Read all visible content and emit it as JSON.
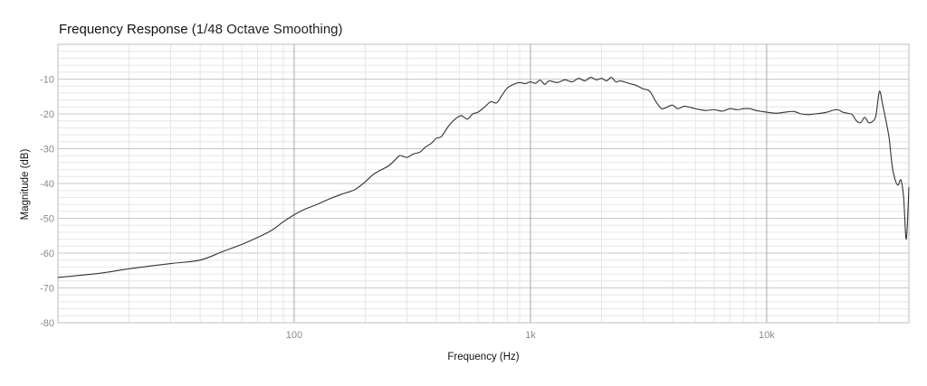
{
  "chart_data": {
    "type": "line",
    "title": "Frequency Response",
    "subtitle": "(1/48 Octave Smoothing)",
    "xlabel": "Frequency (Hz)",
    "ylabel": "Magnitude (dB)",
    "x_scale": "log",
    "xlim": [
      10,
      40000
    ],
    "ylim": [
      -80,
      0
    ],
    "x_ticks": [
      {
        "value": 100,
        "label": "100"
      },
      {
        "value": 1000,
        "label": "1k"
      },
      {
        "value": 10000,
        "label": "10k"
      }
    ],
    "y_ticks": [
      {
        "value": -10,
        "label": "-10"
      },
      {
        "value": -20,
        "label": "-20"
      },
      {
        "value": -30,
        "label": "-30"
      },
      {
        "value": -40,
        "label": "-40"
      },
      {
        "value": -50,
        "label": "-50"
      },
      {
        "value": -60,
        "label": "-60"
      },
      {
        "value": -70,
        "label": "-70"
      },
      {
        "value": -80,
        "label": "-80"
      }
    ],
    "grid": true,
    "colors": {
      "line": "#333333",
      "grid_major": "#c8c8c8",
      "grid_minor": "#e6e6e6",
      "frame": "#bdbdbd"
    },
    "series": [
      {
        "x": [
          10,
          15,
          20,
          30,
          40,
          50,
          60,
          70,
          80,
          90,
          100,
          110,
          125,
          140,
          160,
          180,
          200,
          215,
          230,
          250,
          265,
          280,
          300,
          320,
          340,
          360,
          380,
          400,
          420,
          450,
          480,
          510,
          540,
          570,
          600,
          640,
          680,
          720,
          760,
          800,
          850,
          900,
          950,
          1000,
          1050,
          1100,
          1150,
          1200,
          1300,
          1400,
          1500,
          1600,
          1700,
          1800,
          1900,
          2000,
          2100,
          2200,
          2300,
          2400,
          2600,
          2800,
          3000,
          3200,
          3400,
          3600,
          3800,
          4000,
          4200,
          4500,
          5000,
          5500,
          6000,
          6500,
          7000,
          7500,
          8000,
          8500,
          9000,
          10000,
          11000,
          12000,
          13000,
          14000,
          15000,
          16000,
          17000,
          18000,
          19000,
          20000,
          21000,
          22000,
          23000,
          24000,
          25000,
          26000,
          27000,
          28000,
          29000,
          30000,
          31000,
          32000,
          33000,
          34000,
          35000,
          36000,
          37000,
          38000,
          39000,
          40000
        ],
        "y": [
          -67,
          -65.8,
          -64.5,
          -63,
          -62,
          -59.5,
          -57.5,
          -55.5,
          -53.5,
          -51,
          -49,
          -47.5,
          -46,
          -44.5,
          -43,
          -41.8,
          -39.5,
          -37.5,
          -36.3,
          -35,
          -33.5,
          -32,
          -32.5,
          -31.5,
          -31,
          -29.5,
          -28.5,
          -27,
          -26.5,
          -23.5,
          -21.5,
          -20.5,
          -21.5,
          -20,
          -19.5,
          -18,
          -16.5,
          -16.8,
          -14.5,
          -12.5,
          -11.5,
          -11,
          -11.3,
          -10.8,
          -11.2,
          -10.3,
          -11.5,
          -10.5,
          -11,
          -10.2,
          -10.8,
          -9.8,
          -10.5,
          -9.5,
          -10.2,
          -9.8,
          -10.5,
          -9.5,
          -10.8,
          -10.5,
          -11.2,
          -11.8,
          -12.8,
          -13.5,
          -16.5,
          -18.5,
          -18,
          -17.5,
          -18.5,
          -17.8,
          -18.5,
          -19,
          -18.8,
          -19.2,
          -18.5,
          -18.8,
          -18.5,
          -18.5,
          -19,
          -19.5,
          -19.8,
          -19.5,
          -19.3,
          -20,
          -20.2,
          -20,
          -19.8,
          -19.5,
          -19,
          -18.8,
          -19.5,
          -19.8,
          -20.2,
          -22,
          -22.5,
          -21,
          -22.5,
          -22.2,
          -20.5,
          -13.5,
          -17.5,
          -22,
          -27,
          -35,
          -39,
          -40.5,
          -39,
          -44,
          -56,
          -41
        ]
      }
    ]
  }
}
